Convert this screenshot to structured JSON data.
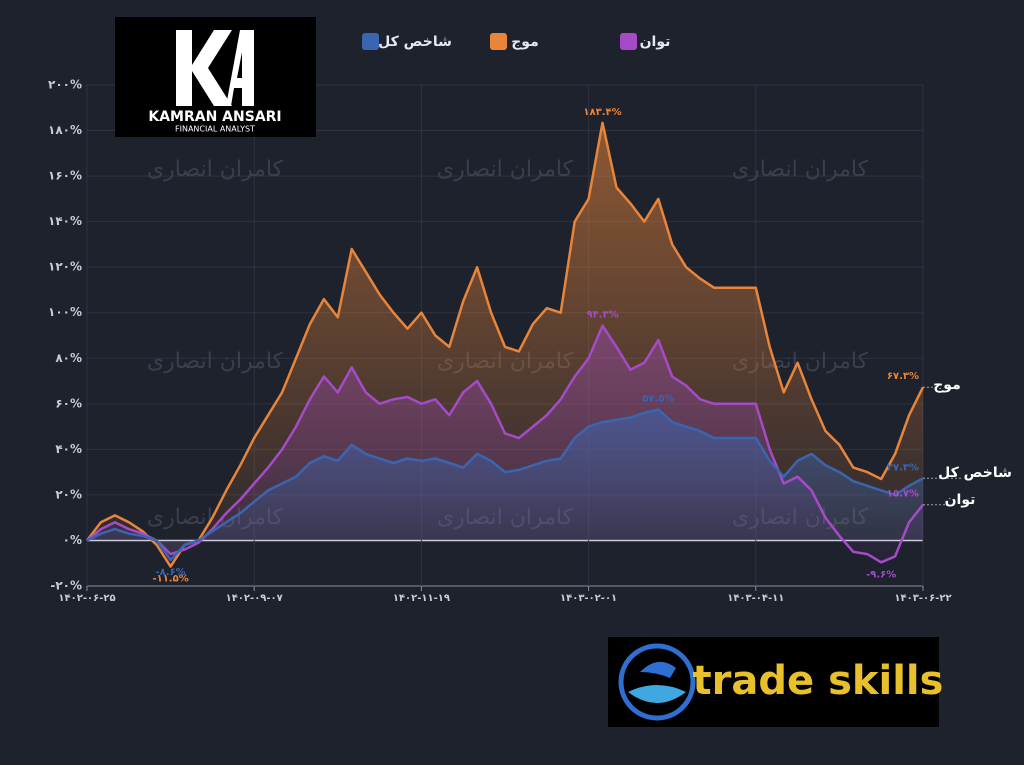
{
  "chart_data": {
    "type": "line",
    "categories": [
      "۱۴۰۲-۰۶-۲۵",
      null,
      null,
      null,
      null,
      null,
      null,
      null,
      null,
      null,
      null,
      null,
      "۱۴۰۲-۰۹-۰۷",
      null,
      null,
      null,
      null,
      null,
      null,
      null,
      null,
      null,
      null,
      null,
      "۱۴۰۲-۱۱-۱۹",
      null,
      null,
      null,
      null,
      null,
      null,
      null,
      null,
      null,
      null,
      null,
      "۱۴۰۳-۰۲-۰۱",
      null,
      null,
      null,
      null,
      null,
      null,
      null,
      null,
      null,
      null,
      null,
      "۱۴۰۳-۰۴-۱۱",
      null,
      null,
      null,
      null,
      null,
      null,
      null,
      null,
      null,
      null,
      null,
      "۱۴۰۳-۰۶-۲۲"
    ],
    "series": [
      {
        "name": "موج",
        "color": "#e8853a",
        "values": [
          0,
          8,
          11,
          8,
          4,
          -2,
          -11.5,
          -2,
          0,
          10,
          22,
          33,
          45,
          55,
          65,
          80,
          95,
          106,
          98,
          128,
          118,
          108,
          100,
          93,
          100,
          90,
          85,
          105,
          120,
          100,
          85,
          83,
          95,
          102,
          100,
          140,
          150,
          183.4,
          155,
          148,
          140,
          150,
          130,
          120,
          115,
          111,
          111,
          111,
          111,
          85,
          65,
          78,
          62,
          48,
          42,
          32,
          30,
          27,
          38,
          55,
          67.3
        ],
        "value_labels": [
          null,
          null,
          null,
          null,
          null,
          null,
          "-۱۱.۵%",
          null,
          null,
          null,
          null,
          null,
          null,
          null,
          null,
          null,
          null,
          null,
          null,
          null,
          null,
          null,
          null,
          null,
          null,
          null,
          null,
          null,
          null,
          null,
          null,
          null,
          null,
          null,
          null,
          null,
          null,
          "۱۸۳.۴%",
          null,
          null,
          null,
          null,
          null,
          null,
          null,
          null,
          null,
          null,
          null,
          null,
          null,
          null,
          null,
          null,
          null,
          null,
          null,
          null,
          null,
          null,
          "۶۷.۳%"
        ]
      },
      {
        "name": "شاخص کل",
        "color": "#3a65b0",
        "values": [
          0,
          3,
          5,
          3,
          2,
          0,
          -8.6,
          -2,
          0,
          4,
          8,
          12,
          17,
          22,
          25,
          28,
          34,
          37,
          35,
          42,
          38,
          36,
          34,
          36,
          35,
          36,
          34,
          32,
          38,
          35,
          30,
          31,
          33,
          35,
          36,
          45,
          50,
          52,
          53,
          54,
          56,
          57.5,
          52,
          50,
          48,
          45,
          45,
          45,
          45,
          35,
          28,
          35,
          38,
          33,
          30,
          26,
          24,
          22,
          20,
          24,
          27.3
        ],
        "value_labels": [
          null,
          null,
          null,
          null,
          null,
          null,
          "-۸.۶%",
          null,
          null,
          null,
          null,
          null,
          null,
          null,
          null,
          null,
          null,
          null,
          null,
          null,
          null,
          null,
          null,
          null,
          null,
          null,
          null,
          null,
          null,
          null,
          null,
          null,
          null,
          null,
          null,
          null,
          null,
          null,
          null,
          null,
          null,
          "۵۷.۵%",
          null,
          null,
          null,
          null,
          null,
          null,
          null,
          null,
          null,
          null,
          null,
          null,
          null,
          null,
          null,
          null,
          null,
          null,
          "۲۷.۳%"
        ]
      },
      {
        "name": "توان",
        "color": "#a64bc8",
        "values": [
          0,
          5,
          8,
          5,
          3,
          0,
          -6,
          -4,
          -1,
          5,
          12,
          18,
          25,
          32,
          40,
          50,
          62,
          72,
          65,
          76,
          65,
          60,
          62,
          63,
          60,
          62,
          55,
          65,
          70,
          60,
          47,
          45,
          50,
          55,
          62,
          72,
          80,
          94.3,
          85,
          75,
          78,
          88,
          72,
          68,
          62,
          60,
          60,
          60,
          60,
          40,
          25,
          28,
          22,
          10,
          2,
          -5,
          -6,
          -9.6,
          -7,
          8,
          15.7
        ],
        "value_labels": [
          null,
          null,
          null,
          null,
          null,
          null,
          null,
          null,
          null,
          null,
          null,
          null,
          null,
          null,
          null,
          null,
          null,
          null,
          null,
          null,
          null,
          null,
          null,
          null,
          null,
          null,
          null,
          null,
          null,
          null,
          null,
          null,
          null,
          null,
          null,
          null,
          null,
          "۹۴.۳%",
          null,
          null,
          null,
          null,
          null,
          null,
          null,
          null,
          null,
          null,
          null,
          null,
          null,
          null,
          null,
          null,
          null,
          null,
          null,
          "-۹.۶%",
          null,
          null,
          "۱۵.۷%"
        ]
      }
    ],
    "ylim": [
      -20,
      200
    ],
    "yticks": [
      {
        "value": -20,
        "label": "-۲۰%"
      },
      {
        "value": 0,
        "label": "۰%"
      },
      {
        "value": 20,
        "label": "۲۰%"
      },
      {
        "value": 40,
        "label": "۴۰%"
      },
      {
        "value": 60,
        "label": "۶۰%"
      },
      {
        "value": 80,
        "label": "۸۰%"
      },
      {
        "value": 100,
        "label": "۱۰۰%"
      },
      {
        "value": 120,
        "label": "۱۲۰%"
      },
      {
        "value": 140,
        "label": "۱۴۰%"
      },
      {
        "value": 160,
        "label": "۱۶۰%"
      },
      {
        "value": 180,
        "label": "۱۸۰%"
      },
      {
        "value": 200,
        "label": "۲۰۰%"
      }
    ],
    "grid": true
  },
  "watermark": "کامران انصاری",
  "logos": {
    "brand": "KAMRAN ANSARI",
    "tagline": "FINANCIAL ANALYST",
    "partner": "trade skills"
  }
}
